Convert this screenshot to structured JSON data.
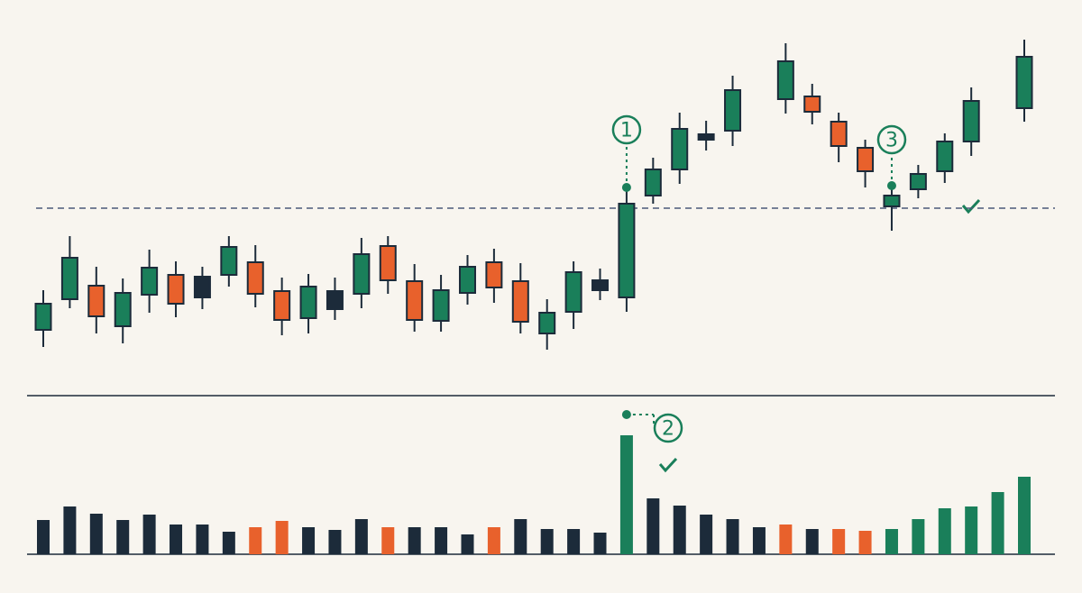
{
  "chart_data": [
    {
      "type": "candlestick",
      "categories": [
        null,
        null,
        null,
        null,
        null,
        null,
        null,
        null,
        null,
        null,
        null,
        null,
        null,
        null,
        null,
        null,
        null,
        null,
        null,
        null,
        null,
        null,
        null,
        null,
        null,
        null,
        null,
        null,
        null,
        null,
        null,
        null,
        null,
        null,
        null,
        null,
        null,
        null
      ],
      "open": [
        74,
        108,
        123,
        78,
        113,
        135,
        133,
        135,
        149,
        117,
        87,
        117,
        114,
        167,
        128,
        84,
        115,
        149,
        128,
        70,
        94,
        129,
        110,
        223,
        252,
        291,
        295,
        null,
        330,
        333,
        305,
        276,
        211,
        230,
        250,
        283,
        null,
        320
      ],
      "high": [
        118,
        178,
        144,
        131,
        163,
        150,
        144,
        178,
        168,
        132,
        136,
        132,
        176,
        178,
        147,
        135,
        157,
        164,
        148,
        108,
        150,
        142,
        228,
        265,
        315,
        306,
        356,
        null,
        392,
        347,
        315,
        285,
        232,
        257,
        292,
        343,
        null,
        396
      ],
      "low": [
        55,
        98,
        70,
        59,
        93,
        88,
        97,
        122,
        99,
        68,
        70,
        85,
        98,
        114,
        72,
        72,
        102,
        104,
        70,
        52,
        75,
        107,
        94,
        214,
        236,
        273,
        278,
        null,
        314,
        302,
        260,
        232,
        184,
        220,
        237,
        267,
        null,
        305
      ],
      "close": [
        103,
        154,
        89,
        115,
        143,
        103,
        110,
        166,
        114,
        85,
        122,
        97,
        158,
        129,
        85,
        118,
        144,
        121,
        83,
        93,
        138,
        118,
        214,
        252,
        297,
        285,
        340,
        null,
        372,
        316,
        278,
        250,
        223,
        247,
        283,
        328,
        null,
        377
      ],
      "colors": [
        "#1a7f5a",
        "#1a7f5a",
        "#e8612c",
        "#1a7f5a",
        "#1a7f5a",
        "#e8612c",
        "#1c2b3a",
        "#1a7f5a",
        "#e8612c",
        "#e8612c",
        "#1a7f5a",
        "#1c2b3a",
        "#1a7f5a",
        "#e8612c",
        "#e8612c",
        "#1a7f5a",
        "#1a7f5a",
        "#e8612c",
        "#e8612c",
        "#1a7f5a",
        "#1a7f5a",
        "#1c2b3a",
        "#1a7f5a",
        "#1a7f5a",
        "#1a7f5a",
        "#1c2b3a",
        "#1a7f5a",
        null,
        "#1a7f5a",
        "#e8612c",
        "#e8612c",
        "#e8612c",
        "#1a7f5a",
        "#1a7f5a",
        "#1a7f5a",
        "#1a7f5a",
        null,
        "#1a7f5a"
      ],
      "ylim": [
        0,
        420
      ],
      "reference_line": 209,
      "annotations": [
        "1",
        "3"
      ]
    },
    {
      "type": "bar",
      "values": [
        38,
        53,
        45,
        38,
        44,
        33,
        33,
        25,
        30,
        37,
        30,
        27,
        39,
        30,
        30,
        30,
        22,
        30,
        39,
        28,
        28,
        24,
        132,
        62,
        54,
        44,
        39,
        30,
        33,
        28,
        28,
        26,
        28,
        39,
        51,
        53,
        69,
        86
      ],
      "colors": [
        "#1c2b3a",
        "#1c2b3a",
        "#1c2b3a",
        "#1c2b3a",
        "#1c2b3a",
        "#1c2b3a",
        "#1c2b3a",
        "#1c2b3a",
        "#e8612c",
        "#e8612c",
        "#1c2b3a",
        "#1c2b3a",
        "#1c2b3a",
        "#e8612c",
        "#1c2b3a",
        "#1c2b3a",
        "#1c2b3a",
        "#e8612c",
        "#1c2b3a",
        "#1c2b3a",
        "#1c2b3a",
        "#1c2b3a",
        "#1a7f5a",
        "#1c2b3a",
        "#1c2b3a",
        "#1c2b3a",
        "#1c2b3a",
        "#1c2b3a",
        "#e8612c",
        "#1c2b3a",
        "#e8612c",
        "#e8612c",
        "#1a7f5a",
        "#1a7f5a",
        "#1a7f5a",
        "#1a7f5a",
        "#1a7f5a",
        "#1a7f5a"
      ],
      "ylim": [
        0,
        140
      ],
      "annotations": [
        "2"
      ]
    }
  ]
}
